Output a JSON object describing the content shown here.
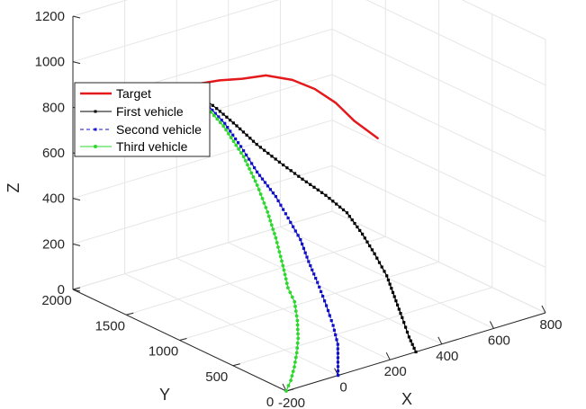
{
  "chart_data": {
    "type": "line",
    "title": "",
    "xlabel": "X",
    "ylabel": "Y",
    "zlabel": "Z",
    "xlim": [
      -200,
      800
    ],
    "ylim": [
      0,
      2000
    ],
    "zlim": [
      0,
      1200
    ],
    "x_ticks": [
      "-200",
      "0",
      "200",
      "400",
      "600",
      "800"
    ],
    "y_ticks": [
      "0",
      "500",
      "1000",
      "1500",
      "2000"
    ],
    "z_ticks": [
      "0",
      "200",
      "400",
      "600",
      "800",
      "1000",
      "1200"
    ],
    "grid": true,
    "legend_position": "top-left",
    "legend": [
      "Target",
      "First vehicle",
      "Second vehicle",
      "Third vehicle"
    ],
    "series": [
      {
        "name": "Target",
        "color": "#e3191c",
        "style": "solid",
        "marker": "none",
        "points": [
          [
            190,
            1900,
            780
          ],
          [
            230,
            1850,
            790
          ],
          [
            280,
            1790,
            800
          ],
          [
            330,
            1700,
            810
          ],
          [
            380,
            1600,
            830
          ],
          [
            420,
            1450,
            830
          ],
          [
            445,
            1300,
            815
          ],
          [
            465,
            1150,
            780
          ],
          [
            475,
            1000,
            730
          ],
          [
            490,
            820,
            690
          ]
        ]
      },
      {
        "name": "First vehicle",
        "color": "#000000",
        "style": "solid",
        "marker": "square",
        "points": [
          [
            300,
            0,
            0
          ],
          [
            290,
            40,
            60
          ],
          [
            280,
            80,
            140
          ],
          [
            275,
            140,
            220
          ],
          [
            270,
            200,
            300
          ],
          [
            260,
            290,
            380
          ],
          [
            250,
            380,
            450
          ],
          [
            240,
            500,
            520
          ],
          [
            220,
            650,
            570
          ],
          [
            200,
            820,
            610
          ],
          [
            185,
            1000,
            650
          ],
          [
            180,
            1200,
            685
          ],
          [
            185,
            1400,
            720
          ],
          [
            190,
            1600,
            750
          ],
          [
            190,
            1750,
            770
          ],
          [
            190,
            1900,
            780
          ]
        ]
      },
      {
        "name": "Second vehicle",
        "color": "#1010c8",
        "style": "dashed",
        "marker": "square",
        "points": [
          [
            0,
            0,
            0
          ],
          [
            20,
            50,
            40
          ],
          [
            40,
            100,
            100
          ],
          [
            55,
            180,
            160
          ],
          [
            70,
            280,
            220
          ],
          [
            85,
            400,
            290
          ],
          [
            100,
            520,
            350
          ],
          [
            110,
            620,
            420
          ],
          [
            120,
            760,
            480
          ],
          [
            130,
            900,
            540
          ],
          [
            140,
            1100,
            600
          ],
          [
            160,
            1300,
            660
          ],
          [
            180,
            1500,
            710
          ],
          [
            190,
            1700,
            750
          ],
          [
            190,
            1900,
            780
          ]
        ]
      },
      {
        "name": "Third vehicle",
        "color": "#2ed82e",
        "style": "solid",
        "marker": "circle",
        "points": [
          [
            -200,
            0,
            0
          ],
          [
            -170,
            30,
            30
          ],
          [
            -140,
            70,
            70
          ],
          [
            -110,
            120,
            110
          ],
          [
            -80,
            180,
            150
          ],
          [
            -50,
            260,
            200
          ],
          [
            -20,
            360,
            250
          ],
          [
            0,
            470,
            280
          ],
          [
            30,
            590,
            340
          ],
          [
            60,
            730,
            420
          ],
          [
            90,
            880,
            490
          ],
          [
            120,
            1050,
            560
          ],
          [
            150,
            1250,
            630
          ],
          [
            175,
            1500,
            700
          ],
          [
            185,
            1700,
            745
          ],
          [
            190,
            1900,
            780
          ]
        ]
      }
    ]
  }
}
